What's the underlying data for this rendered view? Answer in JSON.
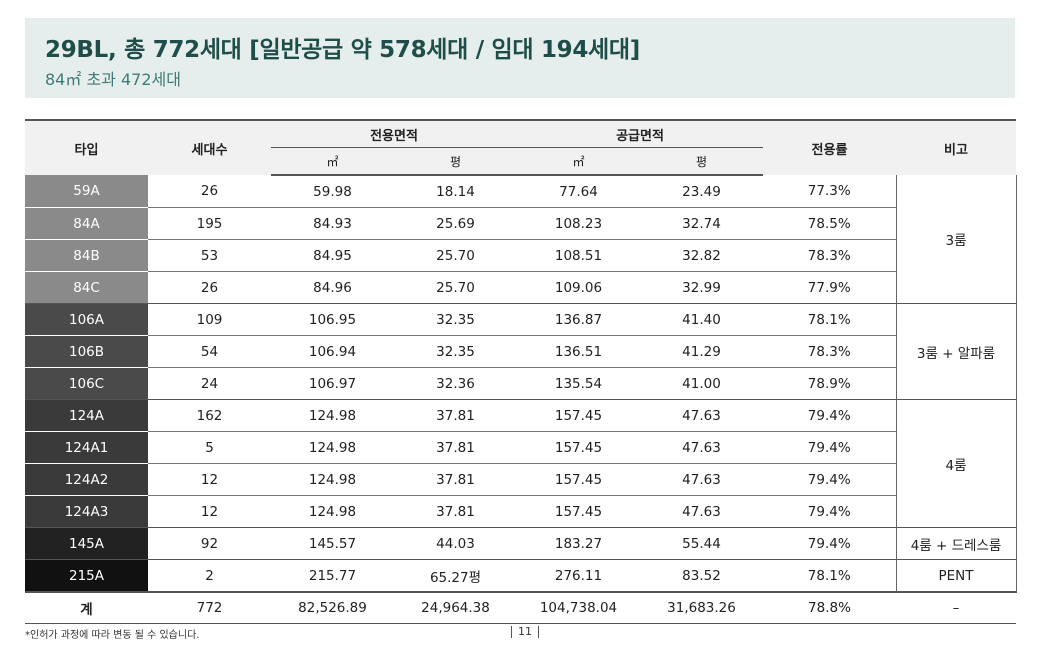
{
  "header": {
    "title": "29BL, 총 772세대 [일반공급 약 578세대 / 임대 194세대]",
    "subtitle": "84㎡ 초과 472세대"
  },
  "table": {
    "headers": {
      "type": "타입",
      "households": "세대수",
      "exclusive_area": "전용면적",
      "supply_area": "공급면적",
      "unit_m2": "㎡",
      "unit_pyeong": "평",
      "ratio": "전용률",
      "note": "비고"
    },
    "rows": [
      {
        "type": "59A",
        "households": "26",
        "ex_m2": "59.98",
        "ex_py": "18.14",
        "sup_m2": "77.64",
        "sup_py": "23.49",
        "ratio": "77.3%",
        "color": "#8a8a8a"
      },
      {
        "type": "84A",
        "households": "195",
        "ex_m2": "84.93",
        "ex_py": "25.69",
        "sup_m2": "108.23",
        "sup_py": "32.74",
        "ratio": "78.5%",
        "color": "#8a8a8a"
      },
      {
        "type": "84B",
        "households": "53",
        "ex_m2": "84.95",
        "ex_py": "25.70",
        "sup_m2": "108.51",
        "sup_py": "32.82",
        "ratio": "78.3%",
        "color": "#8a8a8a"
      },
      {
        "type": "84C",
        "households": "26",
        "ex_m2": "84.96",
        "ex_py": "25.70",
        "sup_m2": "109.06",
        "sup_py": "32.99",
        "ratio": "77.9%",
        "color": "#8a8a8a"
      },
      {
        "type": "106A",
        "households": "109",
        "ex_m2": "106.95",
        "ex_py": "32.35",
        "sup_m2": "136.87",
        "sup_py": "41.40",
        "ratio": "78.1%",
        "color": "#4a4a4a"
      },
      {
        "type": "106B",
        "households": "54",
        "ex_m2": "106.94",
        "ex_py": "32.35",
        "sup_m2": "136.51",
        "sup_py": "41.29",
        "ratio": "78.3%",
        "color": "#4a4a4a"
      },
      {
        "type": "106C",
        "households": "24",
        "ex_m2": "106.97",
        "ex_py": "32.36",
        "sup_m2": "135.54",
        "sup_py": "41.00",
        "ratio": "78.9%",
        "color": "#4a4a4a"
      },
      {
        "type": "124A",
        "households": "162",
        "ex_m2": "124.98",
        "ex_py": "37.81",
        "sup_m2": "157.45",
        "sup_py": "47.63",
        "ratio": "79.4%",
        "color": "#3a3a3a"
      },
      {
        "type": "124A1",
        "households": "5",
        "ex_m2": "124.98",
        "ex_py": "37.81",
        "sup_m2": "157.45",
        "sup_py": "47.63",
        "ratio": "79.4%",
        "color": "#3a3a3a"
      },
      {
        "type": "124A2",
        "households": "12",
        "ex_m2": "124.98",
        "ex_py": "37.81",
        "sup_m2": "157.45",
        "sup_py": "47.63",
        "ratio": "79.4%",
        "color": "#3a3a3a"
      },
      {
        "type": "124A3",
        "households": "12",
        "ex_m2": "124.98",
        "ex_py": "37.81",
        "sup_m2": "157.45",
        "sup_py": "47.63",
        "ratio": "79.4%",
        "color": "#3a3a3a"
      },
      {
        "type": "145A",
        "households": "92",
        "ex_m2": "145.57",
        "ex_py": "44.03",
        "sup_m2": "183.27",
        "sup_py": "55.44",
        "ratio": "79.4%",
        "color": "#222222"
      },
      {
        "type": "215A",
        "households": "2",
        "ex_m2": "215.77",
        "ex_py": "65.27평",
        "sup_m2": "276.11",
        "sup_py": "83.52",
        "ratio": "78.1%",
        "color": "#111111"
      }
    ],
    "notes": [
      {
        "label": "3룸"
      },
      {
        "label": "3룸 + 알파룸"
      },
      {
        "label": "4룸"
      },
      {
        "label": "4룸 + 드레스룸"
      },
      {
        "label": "PENT"
      }
    ],
    "total": {
      "type": "계",
      "households": "772",
      "ex_m2": "82,526.89",
      "ex_py": "24,964.38",
      "sup_m2": "104,738.04",
      "sup_py": "31,683.26",
      "ratio": "78.8%",
      "note": "–"
    }
  },
  "footer": {
    "footnote": "*인허가 과정에 따라 변동 될 수 있습니다.",
    "page_number": "11"
  }
}
